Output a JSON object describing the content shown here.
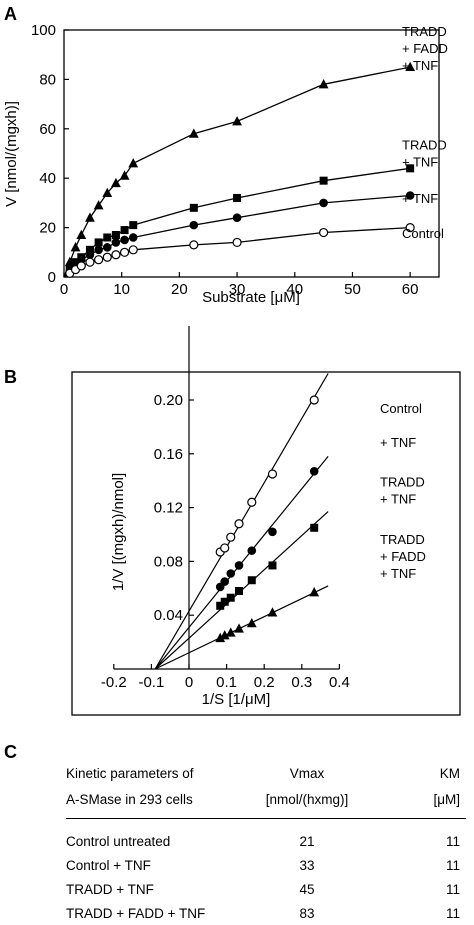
{
  "panels": {
    "a": "A",
    "b": "B",
    "c": "C"
  },
  "chart_data": [
    {
      "type": "line",
      "panel": "A",
      "xlabel": "Substrate [μM]",
      "ylabel": "V [nmol/(mgxh)]",
      "xlim": [
        0,
        65
      ],
      "ylim": [
        0,
        100
      ],
      "xticks": [
        0,
        10,
        20,
        30,
        40,
        50,
        60
      ],
      "yticks": [
        0,
        20,
        40,
        60,
        80,
        100
      ],
      "grid": false,
      "series": [
        {
          "name": "TRADD + FADD + TNF",
          "label_lines": [
            "TRADD",
            "+ FADD",
            "+ TNF"
          ],
          "marker": "triangle-filled",
          "x": [
            1,
            2,
            3,
            4.5,
            6,
            7.5,
            9,
            10.5,
            12,
            22.5,
            30,
            45,
            60
          ],
          "y": [
            6,
            12,
            17,
            24,
            29,
            34,
            38,
            41,
            46,
            58,
            63,
            78,
            85
          ]
        },
        {
          "name": "TRADD + TNF",
          "label_lines": [
            "TRADD",
            "+ TNF"
          ],
          "marker": "square-filled",
          "x": [
            1,
            2,
            3,
            4.5,
            6,
            7.5,
            9,
            10.5,
            12,
            22.5,
            30,
            45,
            60
          ],
          "y": [
            3,
            6,
            8,
            11,
            14,
            16,
            17,
            19,
            21,
            28,
            32,
            39,
            44
          ]
        },
        {
          "name": "+ TNF",
          "label_lines": [
            "+ TNF"
          ],
          "marker": "circle-filled",
          "x": [
            1,
            2,
            3,
            4.5,
            6,
            7.5,
            9,
            10.5,
            12,
            22.5,
            30,
            45,
            60
          ],
          "y": [
            2.5,
            5,
            7,
            9,
            11,
            12,
            14,
            15,
            16,
            21,
            24,
            30,
            33
          ]
        },
        {
          "name": "Control",
          "label_lines": [
            "Control"
          ],
          "marker": "circle-open",
          "x": [
            1,
            2,
            3,
            4.5,
            6,
            7.5,
            9,
            10.5,
            12,
            22.5,
            30,
            45,
            60
          ],
          "y": [
            1.5,
            3,
            4.5,
            6,
            7,
            8,
            9,
            10,
            11,
            13,
            14,
            18,
            20
          ]
        }
      ]
    },
    {
      "type": "scatter",
      "panel": "B",
      "xlabel": "1/S  [1/μM]",
      "ylabel": "1/V [(mgxh)/nmol]",
      "xlim": [
        -0.2,
        0.4
      ],
      "ylim": [
        0,
        0.2
      ],
      "xticks": [
        -0.2,
        -0.1,
        0,
        0.1,
        0.2,
        0.3,
        0.4
      ],
      "xtick_labels": [
        "-0.2",
        "-0.1",
        "0",
        "0.1",
        "0.2",
        "0.3",
        "0.4"
      ],
      "yticks": [
        0.04,
        0.08,
        0.12,
        0.16,
        0.2
      ],
      "ytick_labels": [
        "0.04",
        "0.08",
        "0.12",
        "0.16",
        "0.20"
      ],
      "fit_lines": "linear, common x-intercept at -0.09",
      "series": [
        {
          "name": "Control",
          "label_lines": [
            "Control"
          ],
          "marker": "circle-open",
          "x": [
            0.083,
            0.095,
            0.111,
            0.133,
            0.167,
            0.222,
            0.333
          ],
          "y": [
            0.087,
            0.09,
            0.098,
            0.108,
            0.124,
            0.145,
            0.2
          ],
          "line_to": 0.37
        },
        {
          "name": "+ TNF",
          "label_lines": [
            "+ TNF"
          ],
          "marker": "circle-filled",
          "x": [
            0.083,
            0.095,
            0.111,
            0.133,
            0.167,
            0.222,
            0.333
          ],
          "y": [
            0.061,
            0.065,
            0.071,
            0.077,
            0.088,
            0.102,
            0.147
          ],
          "line_to": 0.37
        },
        {
          "name": "TRADD + TNF",
          "label_lines": [
            "TRADD",
            "+ TNF"
          ],
          "marker": "square-filled",
          "x": [
            0.083,
            0.095,
            0.111,
            0.133,
            0.167,
            0.222,
            0.333
          ],
          "y": [
            0.047,
            0.05,
            0.053,
            0.058,
            0.066,
            0.077,
            0.105
          ],
          "line_to": 0.37
        },
        {
          "name": "TRADD + FADD + TNF",
          "label_lines": [
            "TRADD",
            "+ FADD",
            "+ TNF"
          ],
          "marker": "triangle-filled",
          "x": [
            0.083,
            0.095,
            0.111,
            0.133,
            0.167,
            0.222,
            0.333
          ],
          "y": [
            0.023,
            0.025,
            0.027,
            0.03,
            0.034,
            0.042,
            0.057
          ],
          "line_to": 0.37
        }
      ]
    }
  ],
  "table": {
    "header": {
      "col1": [
        "Kinetic parameters of",
        "A-SMase in 293 cells"
      ],
      "col2": [
        "Vmax",
        "[nmol/(hxmg)]"
      ],
      "col3": [
        "KM",
        "[μM]"
      ]
    },
    "rows": [
      {
        "label": "Control  untreated",
        "vmax": "21",
        "km": "11"
      },
      {
        "label": "Control + TNF",
        "vmax": "33",
        "km": "11"
      },
      {
        "label": "TRADD + TNF",
        "vmax": "45",
        "km": "11"
      },
      {
        "label": "TRADD + FADD + TNF",
        "vmax": "83",
        "km": "11"
      }
    ]
  }
}
